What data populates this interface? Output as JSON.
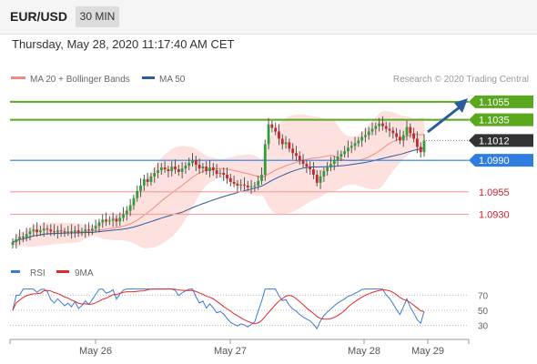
{
  "header": {
    "pair": "EUR/USD",
    "timeframe": "30 MIN",
    "datetime": "Thursday, May 28, 2020 11:17:40 AM CET"
  },
  "chart_data": [
    {
      "type": "candlestick",
      "legend": [
        {
          "name": "MA 20 + Bollinger Bands",
          "color": "#f28b82"
        },
        {
          "name": "MA 50",
          "color": "#2c5c9e"
        }
      ],
      "credit": "Research © 2020 Trading Central",
      "x_tick_labels": [
        "May 26",
        "May 27",
        "May 28",
        "May 29"
      ],
      "ylim": [
        1.0885,
        1.1065
      ],
      "levels": [
        {
          "value": 1.1055,
          "label": "1.1055",
          "kind": "resistance",
          "color": "#5aa81e"
        },
        {
          "value": 1.1035,
          "label": "1.1035",
          "kind": "resistance",
          "color": "#5aa81e"
        },
        {
          "value": 1.1012,
          "label": "1.1012",
          "kind": "last-price",
          "color": "#333333"
        },
        {
          "value": 1.099,
          "label": "1.0990",
          "kind": "pivot",
          "color": "#2f7de1"
        },
        {
          "value": 1.0955,
          "label": "1.0955",
          "kind": "support",
          "color": "#d9232e"
        },
        {
          "value": 1.093,
          "label": "1.0930",
          "kind": "support",
          "color": "#d9232e"
        }
      ],
      "closes": [
        1.0899,
        1.0902,
        1.0905,
        1.0904,
        1.0908,
        1.0911,
        1.0913,
        1.091,
        1.0912,
        1.0914,
        1.0913,
        1.0911,
        1.091,
        1.0912,
        1.0911,
        1.091,
        1.0911,
        1.091,
        1.0912,
        1.091,
        1.0911,
        1.0913,
        1.0912,
        1.0914,
        1.0917,
        1.0921,
        1.0924,
        1.0922,
        1.0923,
        1.0925,
        1.0922,
        1.0926,
        1.093,
        1.0934,
        1.094,
        1.0948,
        1.0956,
        1.0962,
        1.0969,
        1.0966,
        1.0972,
        1.0976,
        1.0979,
        1.0982,
        1.098,
        1.0978,
        1.0983,
        1.098,
        1.0977,
        1.0981,
        1.0984,
        1.0987,
        1.099,
        1.0985,
        1.0981,
        1.0983,
        1.0978,
        1.0982,
        1.0979,
        1.0975,
        1.0976,
        1.0974,
        1.097,
        1.0966,
        1.0964,
        1.0962,
        1.0963,
        1.0962,
        1.096,
        1.0961,
        1.0962,
        1.0967,
        1.0974,
        1.1008,
        1.103,
        1.1026,
        1.1022,
        1.1014,
        1.1008,
        1.101,
        1.1003,
        1.0998,
        1.0995,
        1.099,
        1.0986,
        1.0983,
        1.098,
        1.0974,
        1.0965,
        1.0972,
        1.0978,
        1.0982,
        1.0986,
        1.099,
        1.0994,
        1.0997,
        1.1,
        1.1004,
        1.1006,
        1.1009,
        1.1012,
        1.1016,
        1.1018,
        1.1022,
        1.1025,
        1.1028,
        1.1031,
        1.1028,
        1.1025,
        1.1023,
        1.102,
        1.1016,
        1.1012,
        1.1018,
        1.1027,
        1.102,
        1.1014,
        1.1005,
        1.0999,
        1.1012
      ],
      "rsi": {
        "ticks": [
          70,
          50,
          30
        ],
        "legend": [
          {
            "name": "RSI",
            "color": "#3f78d4"
          },
          {
            "name": "9MA",
            "color": "#e02b2b"
          }
        ]
      }
    }
  ]
}
